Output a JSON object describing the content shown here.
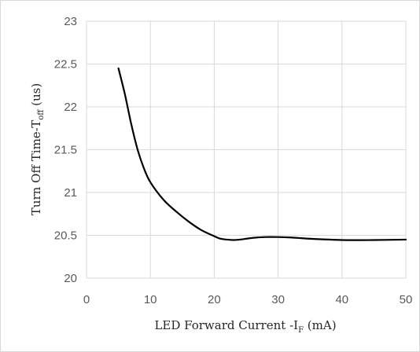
{
  "chart_data": {
    "type": "line",
    "title": "",
    "xlabel_main": "LED Forward Current -I",
    "xlabel_sub": "F",
    "xlabel_tail": " (mA)",
    "ylabel_main": "Turn Off Time-T",
    "ylabel_sub": "off",
    "ylabel_tail": " (us)",
    "xlim": [
      0,
      50
    ],
    "ylim": [
      20,
      23
    ],
    "xticks": [
      "0",
      "10",
      "20",
      "30",
      "40",
      "50"
    ],
    "yticks": [
      "20",
      "20.5",
      "21",
      "21.5",
      "22",
      "22.5",
      "23"
    ],
    "grid": true,
    "legend": "none",
    "series": [
      {
        "color": "#000000",
        "x": [
          5,
          6,
          7,
          8,
          9,
          10,
          12,
          14,
          16,
          18,
          20,
          21,
          22,
          23,
          24,
          26,
          28,
          30,
          32,
          35,
          40,
          45,
          50
        ],
        "y": [
          22.45,
          22.15,
          21.8,
          21.5,
          21.28,
          21.12,
          20.92,
          20.78,
          20.66,
          20.56,
          20.49,
          20.46,
          20.45,
          20.445,
          20.45,
          20.47,
          20.48,
          20.48,
          20.475,
          20.46,
          20.445,
          20.445,
          20.45
        ]
      }
    ]
  }
}
